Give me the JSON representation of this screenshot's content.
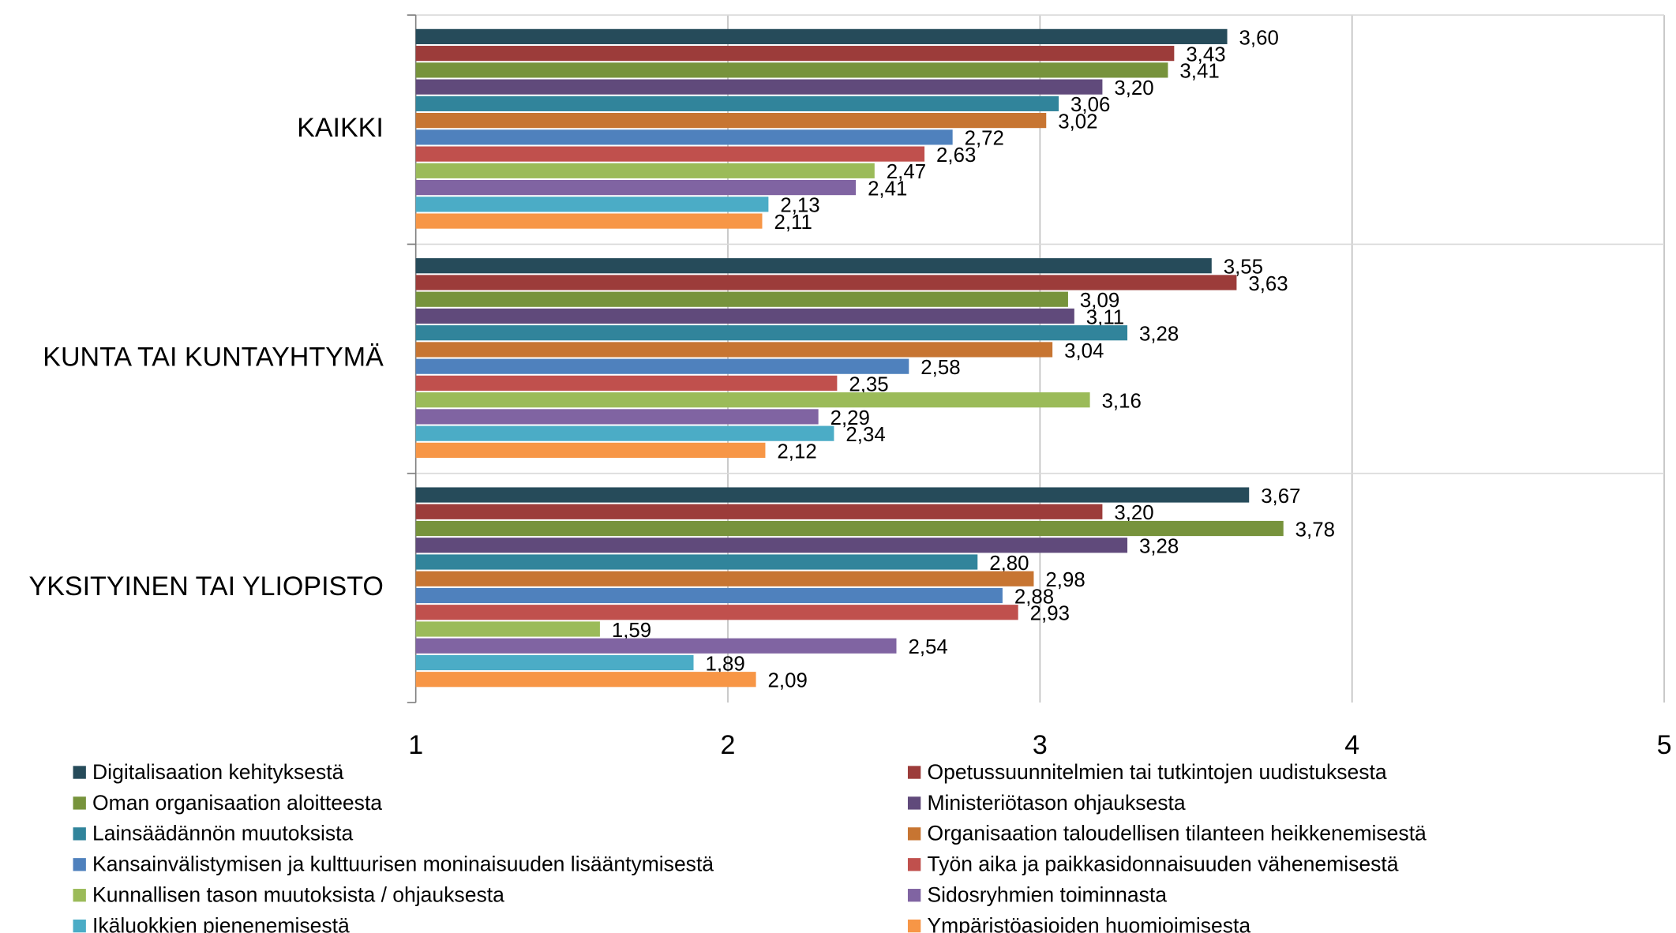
{
  "chart_data": {
    "type": "bar",
    "orientation": "horizontal",
    "categories": [
      "KAIKKI",
      "KUNTA TAI KUNTAYHTYMÄ",
      "YKSITYINEN TAI YLIOPISTO"
    ],
    "xlim": [
      1,
      5
    ],
    "xticks": [
      1,
      2,
      3,
      4,
      5
    ],
    "grid": true,
    "legend": "bottom",
    "series": [
      {
        "name": "Digitalisaation kehityksestä",
        "color": "#264b5a",
        "values": [
          3.6,
          3.55,
          3.67
        ],
        "value_labels": [
          "3,60",
          "3,55",
          "3,67"
        ]
      },
      {
        "name": "Opetussuunnitelmien tai tutkintojen uudistuksesta",
        "color": "#9c3c3a",
        "values": [
          3.43,
          3.63,
          3.2
        ],
        "value_labels": [
          "3,43",
          "3,63",
          "3,20"
        ]
      },
      {
        "name": "Oman organisaation aloitteesta",
        "color": "#77933c",
        "values": [
          3.41,
          3.09,
          3.78
        ],
        "value_labels": [
          "3,41",
          "3,09",
          "3,78"
        ]
      },
      {
        "name": "Ministeriötason ohjauksesta",
        "color": "#604a7b",
        "values": [
          3.2,
          3.11,
          3.28
        ],
        "value_labels": [
          "3,20",
          "3,11",
          "3,28"
        ]
      },
      {
        "name": "Lainsäädännön muutoksista",
        "color": "#31849b",
        "values": [
          3.06,
          3.28,
          2.8
        ],
        "value_labels": [
          "3,06",
          "3,28",
          "2,80"
        ]
      },
      {
        "name": "Organisaation taloudellisen tilanteen heikkenemisestä",
        "color": "#c77532",
        "values": [
          3.02,
          3.04,
          2.98
        ],
        "value_labels": [
          "3,02",
          "3,04",
          "2,98"
        ]
      },
      {
        "name": "Kansainvälistymisen ja kulttuurisen moninaisuuden lisääntymisestä",
        "color": "#4f81bd",
        "values": [
          2.72,
          2.58,
          2.88
        ],
        "value_labels": [
          "2,72",
          "2,58",
          "2,88"
        ]
      },
      {
        "name": "Työn aika ja paikkasidonnaisuuden vähenemisestä",
        "color": "#c0504d",
        "values": [
          2.63,
          2.35,
          2.93
        ],
        "value_labels": [
          "2,63",
          "2,35",
          "2,93"
        ]
      },
      {
        "name": "Kunnallisen tason muutoksista / ohjauksesta",
        "color": "#9bbb59",
        "values": [
          2.47,
          3.16,
          1.59
        ],
        "value_labels": [
          "2,47",
          "3,16",
          "1,59"
        ]
      },
      {
        "name": "Sidosryhmien toiminnasta",
        "color": "#8064a2",
        "values": [
          2.41,
          2.29,
          2.54
        ],
        "value_labels": [
          "2,41",
          "2,29",
          "2,54"
        ]
      },
      {
        "name": "Ikäluokkien pienenemisestä",
        "color": "#4bacc6",
        "values": [
          2.13,
          2.34,
          1.89
        ],
        "value_labels": [
          "2,13",
          "2,34",
          "1,89"
        ]
      },
      {
        "name": "Ympäristöasioiden huomioimisesta",
        "color": "#f79646",
        "values": [
          2.11,
          2.12,
          2.09
        ],
        "value_labels": [
          "2,11",
          "2,12",
          "2,09"
        ]
      }
    ]
  }
}
